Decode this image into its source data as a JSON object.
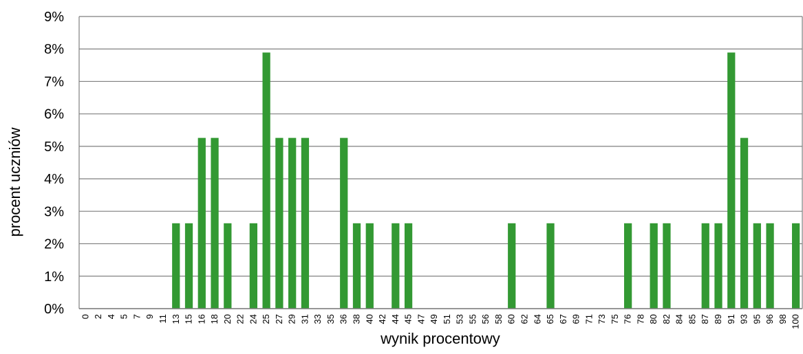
{
  "chart_data": {
    "type": "bar",
    "title": "",
    "xlabel": "wynik procentowy",
    "ylabel": "procent uczniów",
    "ylim": [
      0,
      9
    ],
    "y_ticks": [
      "0%",
      "1%",
      "2%",
      "3%",
      "4%",
      "5%",
      "6%",
      "7%",
      "8%",
      "9%"
    ],
    "grid": true,
    "legend": "none",
    "bar_color": "#339933",
    "categories": [
      "0",
      "2",
      "4",
      "5",
      "7",
      "9",
      "11",
      "13",
      "15",
      "16",
      "18",
      "20",
      "22",
      "24",
      "25",
      "27",
      "29",
      "31",
      "33",
      "35",
      "36",
      "38",
      "40",
      "42",
      "44",
      "45",
      "47",
      "49",
      "51",
      "53",
      "55",
      "56",
      "58",
      "60",
      "62",
      "64",
      "65",
      "67",
      "69",
      "71",
      "73",
      "75",
      "76",
      "78",
      "80",
      "82",
      "84",
      "85",
      "87",
      "89",
      "91",
      "93",
      "95",
      "96",
      "98",
      "100"
    ],
    "values": [
      0,
      0,
      0,
      0,
      0,
      0,
      0,
      2.63,
      2.63,
      5.26,
      5.26,
      2.63,
      0,
      2.63,
      7.89,
      5.26,
      5.26,
      5.26,
      0,
      0,
      5.26,
      2.63,
      2.63,
      0,
      2.63,
      2.63,
      0,
      0,
      0,
      0,
      0,
      0,
      0,
      2.63,
      0,
      0,
      2.63,
      0,
      0,
      0,
      0,
      0,
      2.63,
      0,
      2.63,
      2.63,
      0,
      0,
      2.63,
      2.63,
      7.89,
      5.26,
      2.63,
      2.63,
      0,
      2.63
    ]
  }
}
